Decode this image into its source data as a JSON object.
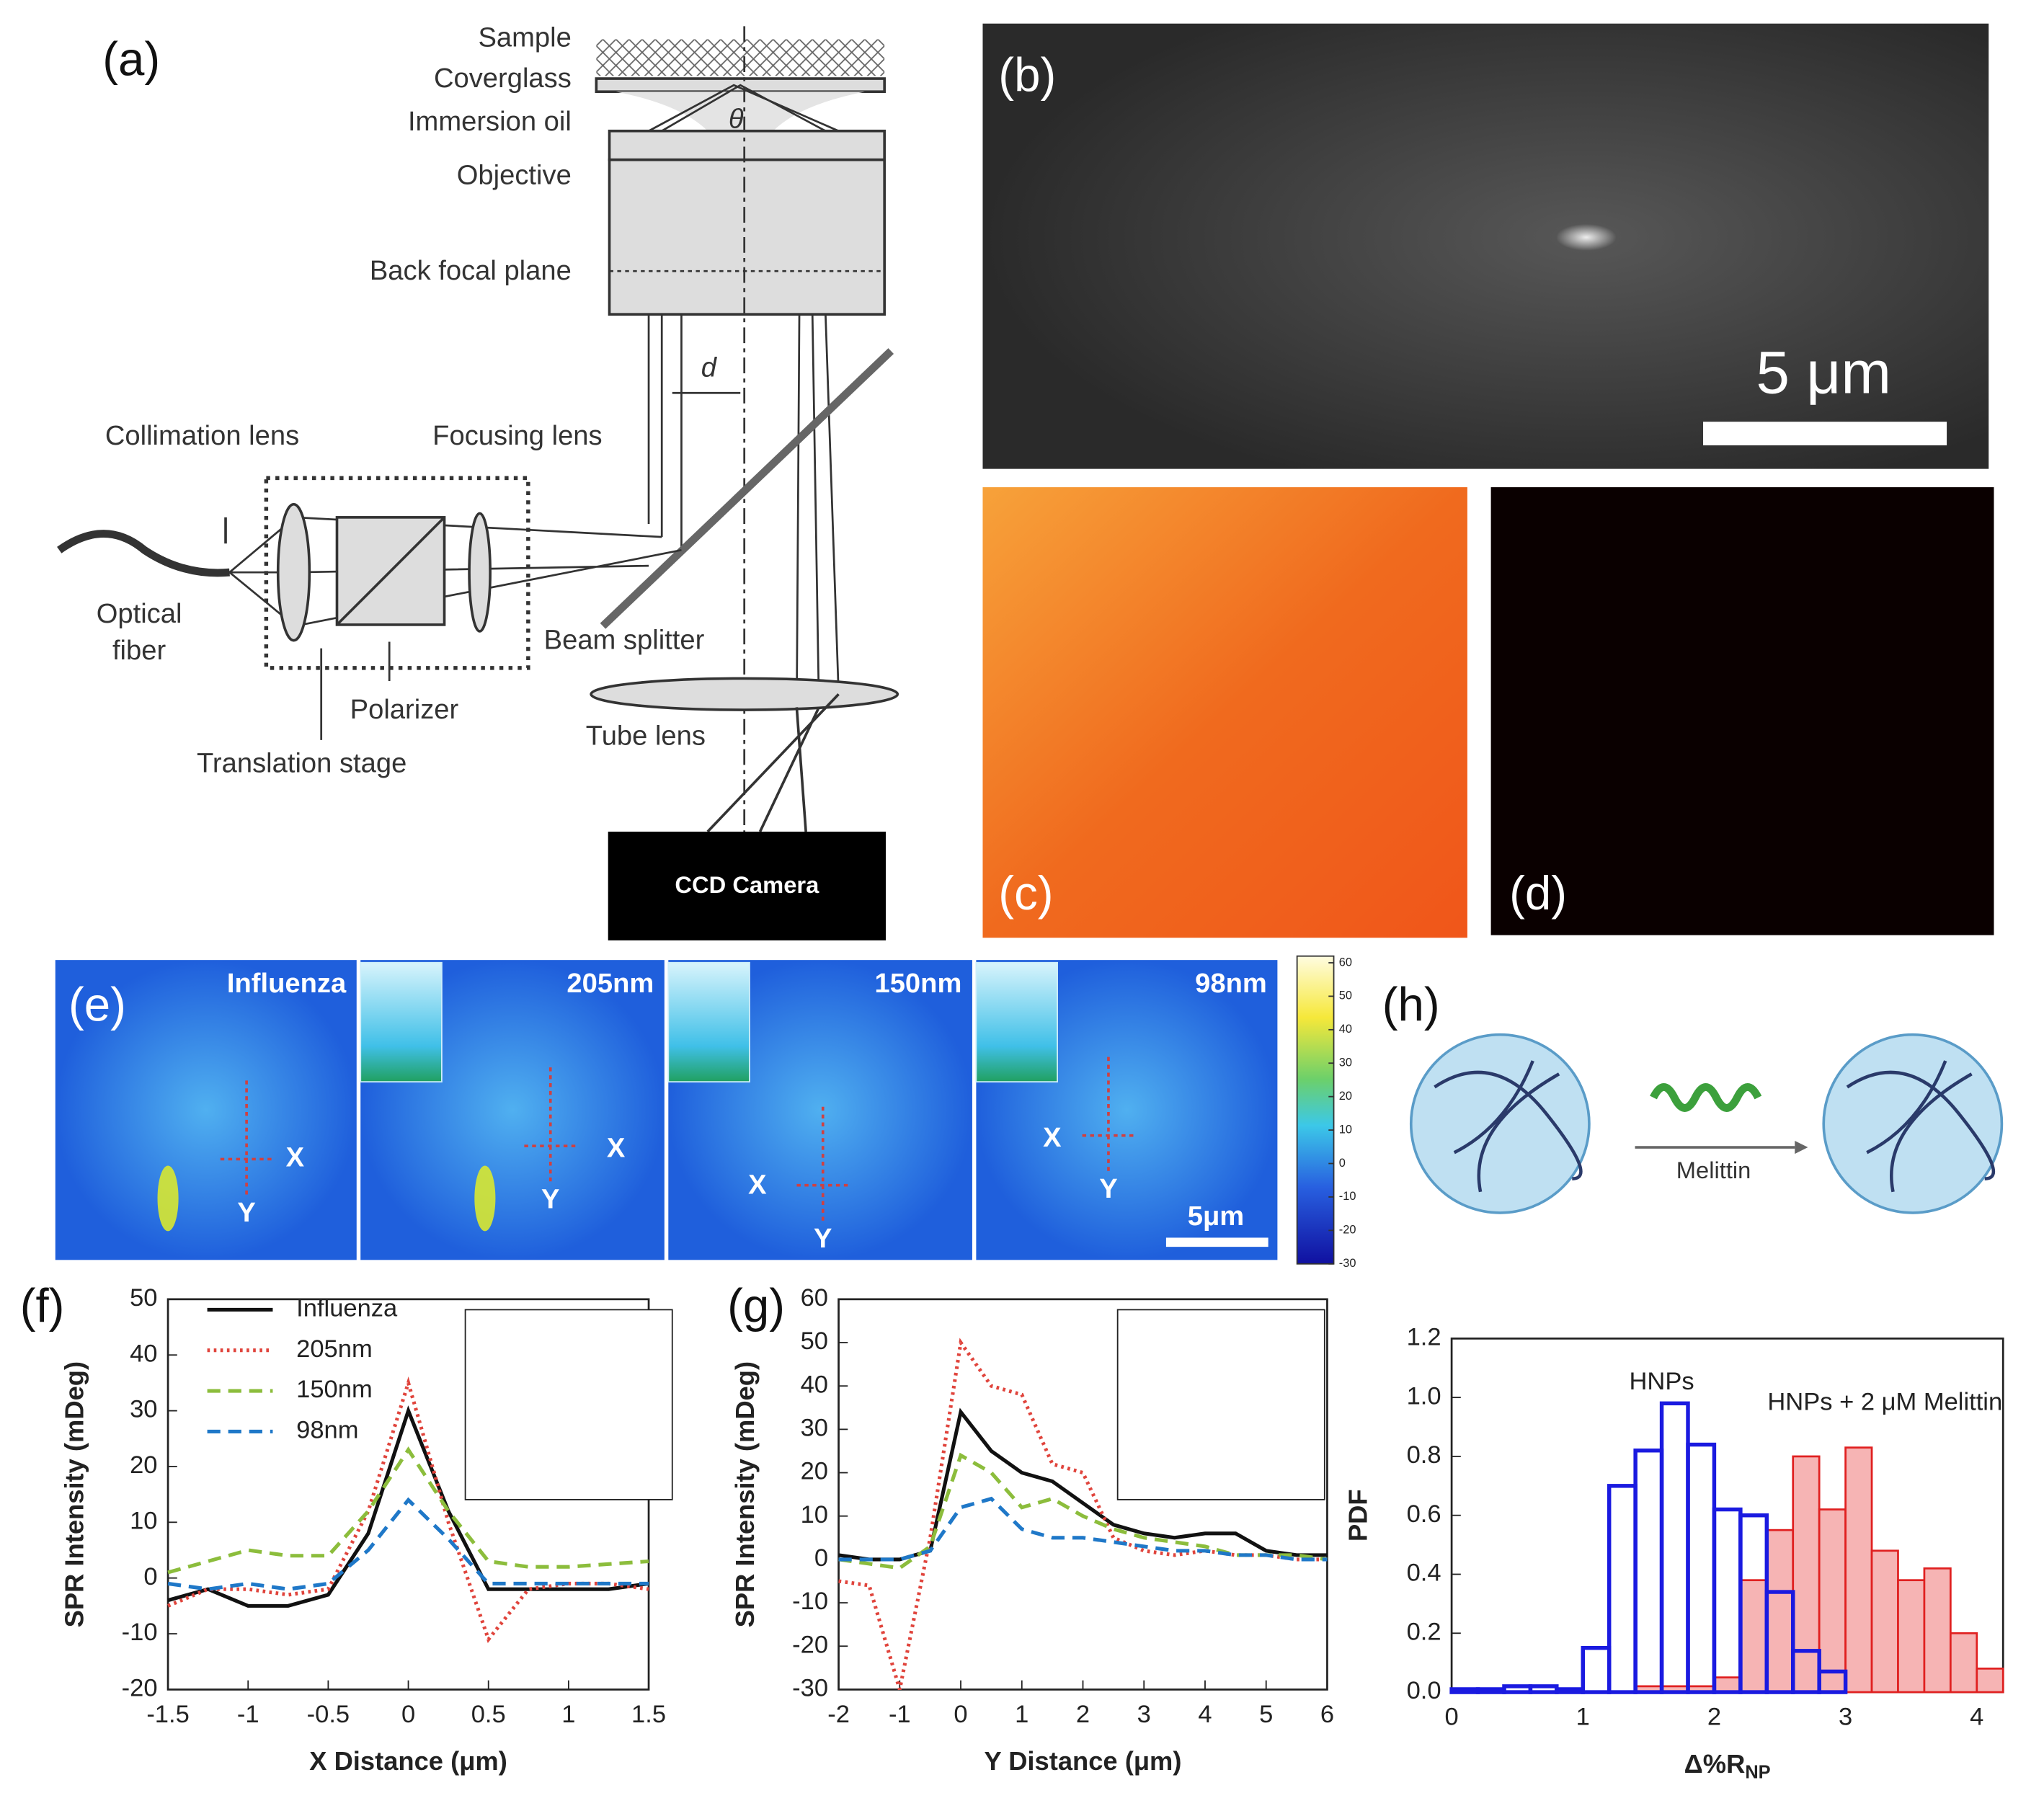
{
  "diagram_a": {
    "panel_label": "(a)",
    "sample": "Sample",
    "coverglass": "Coverglass",
    "immersion_oil": "Immersion oil",
    "objective": "Objective",
    "back_focal_plane": "Back focal plane",
    "theta": "θ",
    "d": "d",
    "collimation_lens": "Collimation lens",
    "focusing_lens": "Focusing lens",
    "optical_fiber": [
      "Optical",
      "fiber"
    ],
    "polarizer": "Polarizer",
    "beam_splitter": "Beam splitter",
    "translation_stage": "Translation stage",
    "tube_lens": "Tube lens",
    "ccd_camera": "CCD Camera"
  },
  "panel_b": {
    "panel_label": "(b)",
    "scale_bar": "5 μm"
  },
  "panel_c": {
    "panel_label": "(c)"
  },
  "panel_d": {
    "panel_label": "(d)"
  },
  "panel_e": {
    "panel_label": "(e)",
    "titles": [
      "Influenza",
      "205nm",
      "150nm",
      "98nm"
    ],
    "x": "X",
    "y": "Y",
    "scale_bar": "5μm",
    "colorbar_ticks": [
      60,
      50,
      40,
      30,
      20,
      10,
      0,
      -10,
      -20,
      -30
    ],
    "colorbar_lim": [
      -30,
      62
    ]
  },
  "panel_h": {
    "panel_label": "(h)",
    "arrow_label": "Melittin"
  },
  "chart_data": [
    {
      "type": "line",
      "panel_label": "(f)",
      "x_label": "X Distance (μm)",
      "y_label": "SPR Intensity (mDeg)",
      "x": [
        -1.5,
        -1.25,
        -1,
        -0.75,
        -0.5,
        -0.25,
        0,
        0.25,
        0.5,
        0.75,
        1,
        1.25,
        1.5
      ],
      "series": [
        {
          "name": "Influenza",
          "color": "#111111",
          "style": "solid",
          "values": [
            -4,
            -2,
            -5,
            -5,
            -3,
            8,
            30,
            12,
            -2,
            -2,
            -2,
            -2,
            -1
          ]
        },
        {
          "name": "205nm",
          "color": "#e0443c",
          "style": "dotted",
          "values": [
            -5,
            -2,
            -2,
            -3,
            -2,
            12,
            35,
            10,
            -11,
            -2,
            -1,
            -1,
            -2
          ]
        },
        {
          "name": "150nm",
          "color": "#8cbd3c",
          "style": "dashed",
          "values": [
            1,
            3,
            5,
            4,
            4,
            12,
            23,
            12,
            3,
            2,
            2,
            2.5,
            3
          ]
        },
        {
          "name": "98nm",
          "color": "#1f78c8",
          "style": "dashed",
          "values": [
            -1,
            -2,
            -1,
            -2,
            -1,
            5,
            14,
            7,
            -1,
            -1,
            -1,
            -1,
            -1
          ]
        }
      ],
      "xlim": [
        -1.5,
        1.5
      ],
      "xticks": [
        -1.5,
        -1,
        -0.5,
        0,
        0.5,
        1,
        1.5
      ],
      "ylim": [
        -20,
        50
      ],
      "yticks": [
        -20,
        -10,
        0,
        10,
        20,
        30,
        40,
        50
      ]
    },
    {
      "type": "line",
      "panel_label": "(g)",
      "x_label": "Y Distance (μm)",
      "y_label": "SPR Intensity (mDeg)",
      "x": [
        -2,
        -1.5,
        -1,
        -0.5,
        0,
        0.5,
        1,
        1.5,
        2,
        2.5,
        3,
        3.5,
        4,
        4.5,
        5,
        5.5,
        6
      ],
      "series": [
        {
          "color": "#111111",
          "style": "solid",
          "values": [
            1,
            0,
            0,
            2,
            34,
            25,
            20,
            18,
            13,
            8,
            6,
            5,
            6,
            6,
            2,
            1,
            1
          ]
        },
        {
          "color": "#e0443c",
          "style": "dotted",
          "values": [
            -5,
            -6,
            -30,
            5,
            50,
            40,
            38,
            22,
            20,
            5,
            2,
            1,
            2,
            1,
            1,
            0,
            0
          ]
        },
        {
          "color": "#8cbd3c",
          "style": "dashed",
          "values": [
            0,
            -1,
            -2,
            3,
            24,
            20,
            12,
            14,
            10,
            7,
            5,
            4,
            3,
            1,
            1,
            1,
            0
          ]
        },
        {
          "color": "#1f78c8",
          "style": "dashed",
          "values": [
            0,
            0,
            0,
            2,
            12,
            14,
            7,
            5,
            5,
            4,
            3,
            2,
            2,
            1,
            1,
            0,
            0
          ]
        }
      ],
      "xlim": [
        -2,
        6
      ],
      "xticks": [
        -2,
        -1,
        0,
        1,
        2,
        3,
        4,
        5,
        6
      ],
      "ylim": [
        -30,
        60
      ],
      "yticks": [
        -30,
        -20,
        -10,
        0,
        10,
        20,
        30,
        40,
        50,
        60
      ]
    },
    {
      "type": "histogram",
      "x_label": {
        "text": "Δ%R",
        "subscript": "NP"
      },
      "y_label": "PDF",
      "bins": [
        0,
        0.2,
        0.4,
        0.6,
        0.8,
        1,
        1.2,
        1.4,
        1.6,
        1.8,
        2,
        2.2,
        2.4,
        2.6,
        2.8,
        3,
        3.2,
        3.4,
        3.6,
        3.8,
        4,
        4.2
      ],
      "series": [
        {
          "name": "HNPs",
          "color": "#1a1ae0",
          "fill": "none",
          "values": [
            0.01,
            0.01,
            0.02,
            0.02,
            0.01,
            0.15,
            0.7,
            0.82,
            0.98,
            0.84,
            0.62,
            0.6,
            0.34,
            0.14,
            0.07,
            0,
            0,
            0,
            0,
            0,
            0
          ]
        },
        {
          "name": "HNPs + 2 μM Melittin",
          "color": "#e02020",
          "fill": "#f6b4b4",
          "values": [
            0,
            0,
            0,
            0,
            0,
            0,
            0,
            0.02,
            0.02,
            0.02,
            0.05,
            0.38,
            0.55,
            0.8,
            0.62,
            0.83,
            0.48,
            0.38,
            0.42,
            0.2,
            0.08
          ]
        }
      ],
      "xlim": [
        0,
        4.2
      ],
      "xticks": [
        0,
        1,
        2,
        3,
        4
      ],
      "ylim": [
        0,
        1.2
      ],
      "yticks": [
        {
          "value": 0,
          "label": "0.0"
        },
        0.2,
        0.4,
        0.6,
        0.8,
        {
          "value": 1,
          "label": "1.0"
        },
        1.2
      ]
    }
  ]
}
